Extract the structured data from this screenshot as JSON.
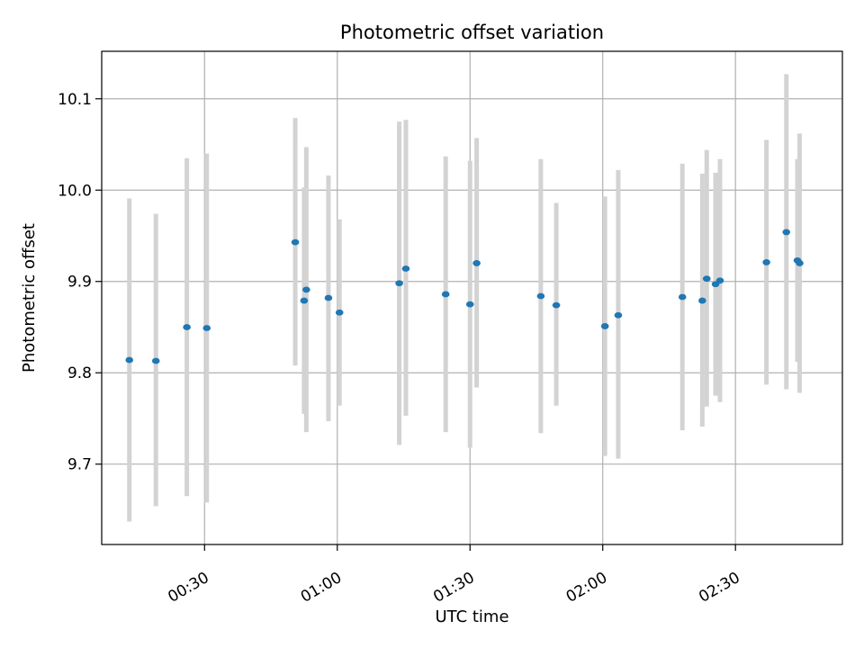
{
  "chart_data": {
    "type": "scatter",
    "title": "Photometric offset variation",
    "xlabel": "UTC time",
    "ylabel": "Photometric offset",
    "x_tick_labels": [
      "00:30",
      "01:00",
      "01:30",
      "02:00",
      "02:30"
    ],
    "x_tick_values": [
      "00:30",
      "01:00",
      "01:30",
      "02:00",
      "02:30"
    ],
    "y_tick_values": [
      9.7,
      9.8,
      9.9,
      10.0,
      10.1
    ],
    "xlim": [
      "00:06:45",
      "02:54:10"
    ],
    "ylim": [
      9.612,
      10.152
    ],
    "grid": true,
    "colors": {
      "points": "#1f77b4",
      "error_bars": "#d3d3d3",
      "grid": "#b0b0b0"
    },
    "points": [
      {
        "x": "00:13:00",
        "y": 9.814,
        "low": 9.637,
        "high": 9.991
      },
      {
        "x": "00:19:00",
        "y": 9.813,
        "low": 9.654,
        "high": 9.974
      },
      {
        "x": "00:26:00",
        "y": 9.85,
        "low": 9.665,
        "high": 10.035
      },
      {
        "x": "00:30:30",
        "y": 9.849,
        "low": 9.658,
        "high": 10.04
      },
      {
        "x": "00:50:30",
        "y": 9.943,
        "low": 9.808,
        "high": 10.079
      },
      {
        "x": "00:52:30",
        "y": 9.879,
        "low": 9.755,
        "high": 10.003
      },
      {
        "x": "00:53:00",
        "y": 9.891,
        "low": 9.735,
        "high": 10.047
      },
      {
        "x": "00:58:00",
        "y": 9.882,
        "low": 9.747,
        "high": 10.016
      },
      {
        "x": "01:00:30",
        "y": 9.866,
        "low": 9.764,
        "high": 9.968
      },
      {
        "x": "01:14:00",
        "y": 9.898,
        "low": 9.721,
        "high": 10.075
      },
      {
        "x": "01:15:30",
        "y": 9.914,
        "low": 9.753,
        "high": 10.077
      },
      {
        "x": "01:24:30",
        "y": 9.886,
        "low": 9.735,
        "high": 10.037
      },
      {
        "x": "01:30:00",
        "y": 9.875,
        "low": 9.718,
        "high": 10.032
      },
      {
        "x": "01:31:30",
        "y": 9.92,
        "low": 9.784,
        "high": 10.057
      },
      {
        "x": "01:46:00",
        "y": 9.884,
        "low": 9.734,
        "high": 10.034
      },
      {
        "x": "01:49:30",
        "y": 9.874,
        "low": 9.764,
        "high": 9.986
      },
      {
        "x": "02:00:30",
        "y": 9.851,
        "low": 9.709,
        "high": 9.993
      },
      {
        "x": "02:03:30",
        "y": 9.863,
        "low": 9.706,
        "high": 10.022
      },
      {
        "x": "02:18:00",
        "y": 9.883,
        "low": 9.737,
        "high": 10.029
      },
      {
        "x": "02:22:30",
        "y": 9.879,
        "low": 9.741,
        "high": 10.018
      },
      {
        "x": "02:23:30",
        "y": 9.903,
        "low": 9.763,
        "high": 10.044
      },
      {
        "x": "02:25:30",
        "y": 9.897,
        "low": 9.775,
        "high": 10.019
      },
      {
        "x": "02:26:30",
        "y": 9.901,
        "low": 9.768,
        "high": 10.034
      },
      {
        "x": "02:37:00",
        "y": 9.921,
        "low": 9.787,
        "high": 10.055
      },
      {
        "x": "02:41:30",
        "y": 9.954,
        "low": 9.782,
        "high": 10.127
      },
      {
        "x": "02:44:00",
        "y": 9.923,
        "low": 9.812,
        "high": 10.034
      },
      {
        "x": "02:44:30",
        "y": 9.92,
        "low": 9.778,
        "high": 10.062
      }
    ]
  }
}
